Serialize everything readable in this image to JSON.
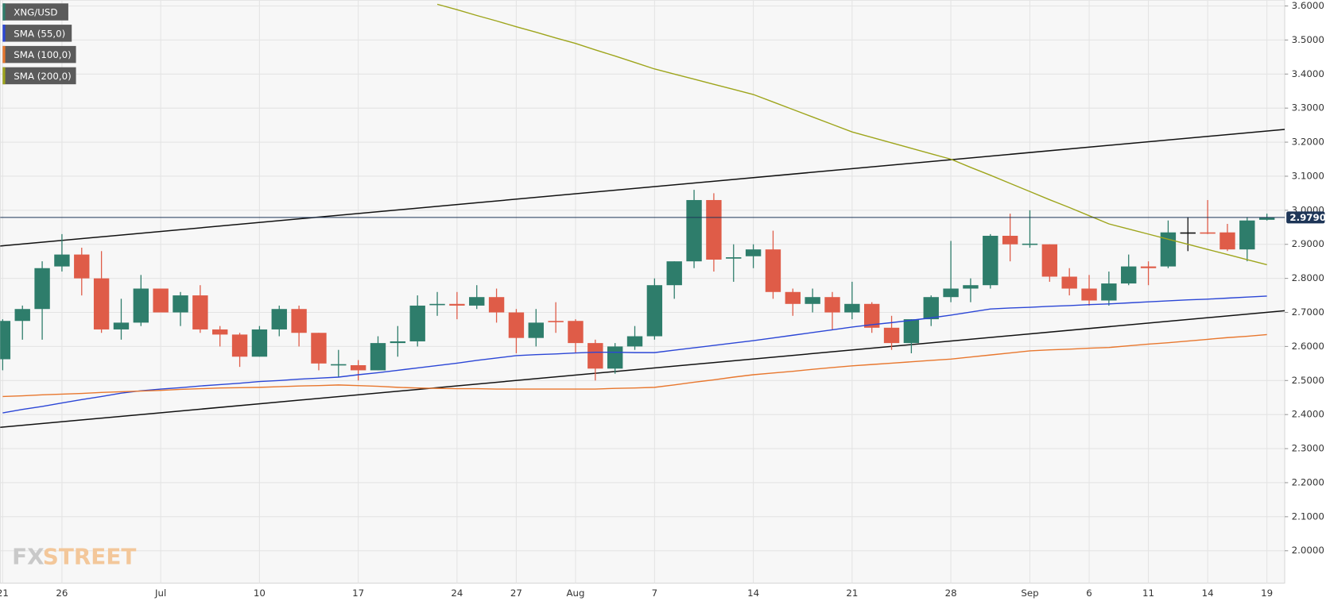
{
  "chart_data": {
    "type": "candlestick",
    "categories": [
      "21",
      null,
      null,
      "26",
      null,
      null,
      null,
      null,
      "Jul",
      null,
      null,
      null,
      null,
      "10",
      null,
      null,
      null,
      null,
      "17",
      null,
      null,
      null,
      null,
      "24",
      null,
      null,
      "27",
      null,
      null,
      "Aug",
      null,
      null,
      null,
      "7",
      null,
      null,
      null,
      null,
      "14",
      null,
      null,
      null,
      null,
      "21",
      null,
      null,
      null,
      null,
      "28",
      null,
      null,
      null,
      "Sep",
      null,
      null,
      "6",
      null,
      null,
      "11",
      null,
      null,
      "14",
      null,
      null,
      "19"
    ],
    "xlim": [
      -0.13,
      64.9
    ],
    "ylim": [
      1.905,
      3.6175
    ],
    "yticks": [
      {
        "value": 2.0,
        "label": "2.0000"
      },
      {
        "value": 2.1,
        "label": "2.1000"
      },
      {
        "value": 2.2,
        "label": "2.2000"
      },
      {
        "value": 2.3,
        "label": "2.3000"
      },
      {
        "value": 2.4,
        "label": "2.4000"
      },
      {
        "value": 2.5,
        "label": "2.5000"
      },
      {
        "value": 2.6,
        "label": "2.6000"
      },
      {
        "value": 2.7,
        "label": "2.7000"
      },
      {
        "value": 2.8,
        "label": "2.8000"
      },
      {
        "value": 2.9,
        "label": "2.9000"
      },
      {
        "value": 3.0,
        "label": "3.0000"
      },
      {
        "value": 3.1,
        "label": "3.1000"
      },
      {
        "value": 3.2,
        "label": "3.2000"
      },
      {
        "value": 3.3,
        "label": "3.3000"
      },
      {
        "value": 3.4,
        "label": "3.4000"
      },
      {
        "value": 3.5,
        "label": "3.5000"
      },
      {
        "value": 3.6,
        "label": "3.6000"
      }
    ],
    "grid": true,
    "series": [
      {
        "name": "XNG/USD",
        "type": "candlestick",
        "color": "#2e7d6b",
        "down_color": "#df5c48",
        "open": [
          2.5625,
          2.675,
          2.71,
          2.835,
          2.87,
          2.8,
          2.65,
          2.67,
          2.77,
          2.7,
          2.75,
          2.65,
          2.635,
          2.57,
          2.65,
          2.71,
          2.64,
          2.545,
          2.545,
          2.53,
          2.61,
          2.615,
          2.722,
          2.725,
          2.72,
          2.745,
          2.7,
          2.625,
          2.675,
          2.675,
          2.61,
          2.535,
          2.6,
          2.63,
          2.78,
          2.85,
          3.03,
          2.858,
          2.865,
          2.885,
          2.76,
          2.725,
          2.745,
          2.7,
          2.725,
          2.655,
          2.61,
          2.68,
          2.745,
          2.77,
          2.78,
          2.925,
          2.9,
          2.9,
          2.805,
          2.77,
          2.735,
          2.785,
          2.835,
          2.835,
          2.935,
          2.935,
          2.935,
          2.885,
          2.972
        ],
        "high": [
          2.68,
          2.72,
          2.85,
          2.93,
          2.89,
          2.88,
          2.74,
          2.81,
          2.77,
          2.76,
          2.78,
          2.66,
          2.64,
          2.66,
          2.72,
          2.72,
          2.64,
          2.59,
          2.56,
          2.63,
          2.66,
          2.75,
          2.76,
          2.76,
          2.78,
          2.77,
          2.71,
          2.71,
          2.73,
          2.68,
          2.62,
          2.61,
          2.66,
          2.8,
          2.85,
          3.06,
          3.05,
          2.9,
          2.9,
          2.94,
          2.77,
          2.77,
          2.76,
          2.79,
          2.73,
          2.69,
          2.68,
          2.75,
          2.91,
          2.8,
          2.93,
          2.99,
          3.0,
          2.9,
          2.83,
          2.81,
          2.82,
          2.87,
          2.85,
          2.97,
          2.98,
          3.03,
          2.96,
          2.98,
          2.99
        ],
        "low": [
          2.53,
          2.62,
          2.62,
          2.82,
          2.75,
          2.64,
          2.62,
          2.66,
          2.7,
          2.66,
          2.64,
          2.6,
          2.54,
          2.57,
          2.63,
          2.6,
          2.53,
          2.51,
          2.5,
          2.53,
          2.57,
          2.6,
          2.69,
          2.68,
          2.71,
          2.67,
          2.58,
          2.6,
          2.64,
          2.58,
          2.5,
          2.52,
          2.59,
          2.62,
          2.74,
          2.83,
          2.82,
          2.79,
          2.83,
          2.74,
          2.69,
          2.7,
          2.65,
          2.68,
          2.64,
          2.59,
          2.58,
          2.66,
          2.73,
          2.73,
          2.77,
          2.85,
          2.89,
          2.79,
          2.75,
          2.72,
          2.72,
          2.78,
          2.78,
          2.83,
          2.88,
          2.93,
          2.88,
          2.85,
          2.97
        ],
        "close": [
          2.675,
          2.71,
          2.83,
          2.87,
          2.8,
          2.65,
          2.67,
          2.77,
          2.7,
          2.75,
          2.65,
          2.635,
          2.57,
          2.65,
          2.71,
          2.64,
          2.55,
          2.548,
          2.53,
          2.61,
          2.615,
          2.72,
          2.725,
          2.72,
          2.745,
          2.7,
          2.625,
          2.67,
          2.672,
          2.61,
          2.535,
          2.6,
          2.63,
          2.78,
          2.85,
          3.03,
          2.855,
          2.862,
          2.885,
          2.76,
          2.725,
          2.745,
          2.7,
          2.725,
          2.655,
          2.61,
          2.68,
          2.745,
          2.77,
          2.78,
          2.925,
          2.9,
          2.902,
          2.805,
          2.77,
          2.735,
          2.785,
          2.835,
          2.83,
          2.935,
          2.935,
          2.932,
          2.885,
          2.97,
          2.979
        ]
      },
      {
        "name": "SMA (55,0)",
        "type": "line",
        "color": "#2b46d6",
        "values": [
          2.405,
          2.415,
          2.424,
          2.434,
          2.444,
          2.453,
          2.463,
          2.47,
          2.475,
          2.479,
          2.484,
          2.488,
          2.492,
          2.497,
          2.5,
          2.504,
          2.507,
          2.51,
          2.517,
          2.523,
          2.53,
          2.537,
          2.544,
          2.551,
          2.559,
          2.566,
          2.573,
          2.576,
          2.578,
          2.581,
          2.583,
          2.583,
          2.582,
          2.582,
          2.589,
          2.596,
          2.603,
          2.61,
          2.617,
          2.625,
          2.633,
          2.641,
          2.649,
          2.657,
          2.664,
          2.67,
          2.677,
          2.684,
          2.692,
          2.701,
          2.71,
          2.713,
          2.715,
          2.718,
          2.72,
          2.723,
          2.725,
          2.728,
          2.731,
          2.734,
          2.737,
          2.739,
          2.742,
          2.745,
          2.748
        ]
      },
      {
        "name": "SMA (100,0)",
        "type": "line",
        "color": "#e8772e",
        "values": [
          2.453,
          2.455,
          2.458,
          2.46,
          2.462,
          2.465,
          2.467,
          2.469,
          2.471,
          2.474,
          2.476,
          2.478,
          2.479,
          2.48,
          2.482,
          2.484,
          2.485,
          2.487,
          2.485,
          2.483,
          2.48,
          2.478,
          2.477,
          2.476,
          2.476,
          2.475,
          2.475,
          2.475,
          2.475,
          2.475,
          2.475,
          2.477,
          2.478,
          2.48,
          2.487,
          2.495,
          2.502,
          2.51,
          2.517,
          2.522,
          2.527,
          2.533,
          2.538,
          2.543,
          2.547,
          2.551,
          2.555,
          2.559,
          2.563,
          2.569,
          2.575,
          2.581,
          2.587,
          2.59,
          2.592,
          2.595,
          2.597,
          2.602,
          2.607,
          2.611,
          2.616,
          2.621,
          2.626,
          2.63,
          2.635
        ]
      },
      {
        "name": "SMA (200,0)",
        "type": "line",
        "color": "#9ea51c",
        "values": [
          null,
          null,
          null,
          null,
          null,
          null,
          null,
          null,
          null,
          null,
          null,
          null,
          null,
          null,
          null,
          null,
          null,
          null,
          null,
          null,
          null,
          null,
          3.605,
          3.589,
          3.572,
          3.556,
          3.539,
          3.523,
          3.506,
          3.49,
          3.471,
          3.453,
          3.434,
          3.415,
          3.4,
          3.385,
          3.37,
          3.355,
          3.34,
          3.318,
          3.296,
          3.274,
          3.252,
          3.23,
          3.214,
          3.198,
          3.182,
          3.166,
          3.15,
          3.126,
          3.103,
          3.079,
          3.055,
          3.031,
          3.008,
          2.984,
          2.96,
          2.945,
          2.93,
          2.915,
          2.9,
          2.885,
          2.87,
          2.855,
          2.84
        ]
      }
    ],
    "trend_lines": [
      {
        "x": [
          -0.13,
          64.9
        ],
        "y": [
          2.895,
          3.2375
        ]
      },
      {
        "x": [
          -0.13,
          64.9
        ],
        "y": [
          2.3625,
          2.705
        ]
      }
    ],
    "last_price": {
      "value": 2.979,
      "label": "2.9790"
    },
    "watermark": [
      "FX",
      "STREET"
    ]
  }
}
